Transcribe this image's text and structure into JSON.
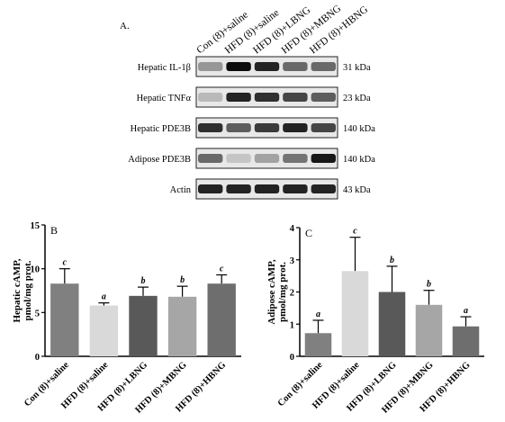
{
  "panel_a": {
    "label": "A.",
    "lanes": [
      "Con (8)+saline",
      "HFD (8)+saline",
      "HFD (8)+LBNG",
      "HFD (8)+MBNG",
      "HFD (8)+HBNG"
    ],
    "rows": [
      {
        "name": "Hepatic IL-1β",
        "size": "31 kDa"
      },
      {
        "name": "Hepatic TNFα",
        "size": "23 kDa"
      },
      {
        "name": "Hepatic PDE3B",
        "size": "140 kDa"
      },
      {
        "name": "Adipose PDE3B",
        "size": "140 kDa"
      },
      {
        "name": "Actin",
        "size": "43 kDa"
      }
    ]
  },
  "chart_data": [
    {
      "type": "bar",
      "panel": "B",
      "ylabel": [
        "Hepatic cAMP,",
        "pmol/mg prot."
      ],
      "categories": [
        "Con (8)+saline",
        "HFD (8)+saline",
        "HFD (8)+LBNG",
        "HFD (8)+MBNG",
        "HFD (8)+HBNG"
      ],
      "values": [
        8.3,
        5.8,
        6.9,
        6.8,
        8.3
      ],
      "errors": [
        1.7,
        0.3,
        1.0,
        1.2,
        1.0
      ],
      "letters": [
        "c",
        "a",
        "b",
        "b",
        "c"
      ],
      "colors": [
        "#808080",
        "#d9d9d9",
        "#595959",
        "#a6a6a6",
        "#6e6e6e"
      ],
      "ylim": [
        0,
        15
      ],
      "yticks": [
        0,
        5,
        10,
        15
      ]
    },
    {
      "type": "bar",
      "panel": "C",
      "ylabel": [
        "Adipose cAMP,",
        "pmol/mg prot."
      ],
      "categories": [
        "Con (8)+saline",
        "HFD (8)+saline",
        "HFD (8)+LBNG",
        "HFD (8)+MBNG",
        "HFD (8)+HBNG"
      ],
      "values": [
        0.72,
        2.65,
        2.0,
        1.6,
        0.93
      ],
      "errors": [
        0.4,
        1.05,
        0.8,
        0.45,
        0.3
      ],
      "letters": [
        "a",
        "c",
        "b",
        "b",
        "a"
      ],
      "colors": [
        "#808080",
        "#d9d9d9",
        "#595959",
        "#a6a6a6",
        "#6e6e6e"
      ],
      "ylim": [
        0,
        4
      ],
      "yticks": [
        0,
        1,
        2,
        3,
        4
      ]
    }
  ]
}
